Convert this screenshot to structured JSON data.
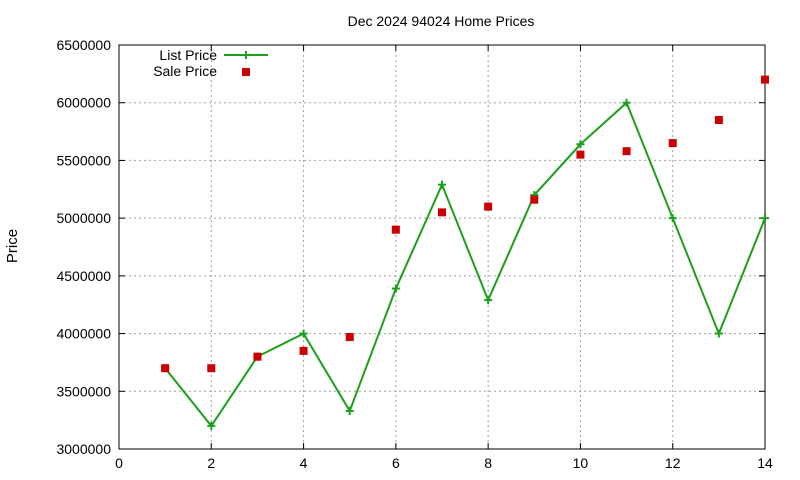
{
  "chart_data": {
    "type": "line",
    "title": "Dec 2024 94024 Home Prices",
    "xlabel": "",
    "ylabel": "Price",
    "xlim": [
      0,
      14
    ],
    "ylim": [
      3000000,
      6500000
    ],
    "x_ticks": [
      0,
      2,
      4,
      6,
      8,
      10,
      12,
      14
    ],
    "y_ticks": [
      3000000,
      3500000,
      4000000,
      4500000,
      5000000,
      5500000,
      6000000,
      6500000
    ],
    "x_tick_labels": [
      "0",
      "2",
      "4",
      "6",
      "8",
      "10",
      "12",
      "14"
    ],
    "y_tick_labels": [
      "3000000",
      "3500000",
      "4000000",
      "4500000",
      "5000000",
      "5500000",
      "6000000",
      "6500000"
    ],
    "grid": true,
    "legend_position": "top-left",
    "series": [
      {
        "name": "List Price",
        "style": "linespoints",
        "marker": "plus",
        "color": "#1aa01a",
        "x": [
          1,
          2,
          3,
          4,
          5,
          6,
          7,
          8,
          9,
          10,
          11,
          12,
          13,
          14
        ],
        "values": [
          3700000,
          3200000,
          3800000,
          4000000,
          3330000,
          4390000,
          5290000,
          4290000,
          5200000,
          5640000,
          6000000,
          5000000,
          4000000,
          5000000
        ]
      },
      {
        "name": "Sale Price",
        "style": "points",
        "marker": "square",
        "color": "#cc0000",
        "x": [
          1,
          2,
          3,
          4,
          5,
          6,
          7,
          8,
          9,
          10,
          11,
          12,
          13,
          14
        ],
        "values": [
          3700000,
          3700000,
          3800000,
          3850000,
          3970000,
          4900000,
          5050000,
          5100000,
          5160000,
          5550000,
          5580000,
          5650000,
          5850000,
          6200000
        ]
      }
    ]
  }
}
